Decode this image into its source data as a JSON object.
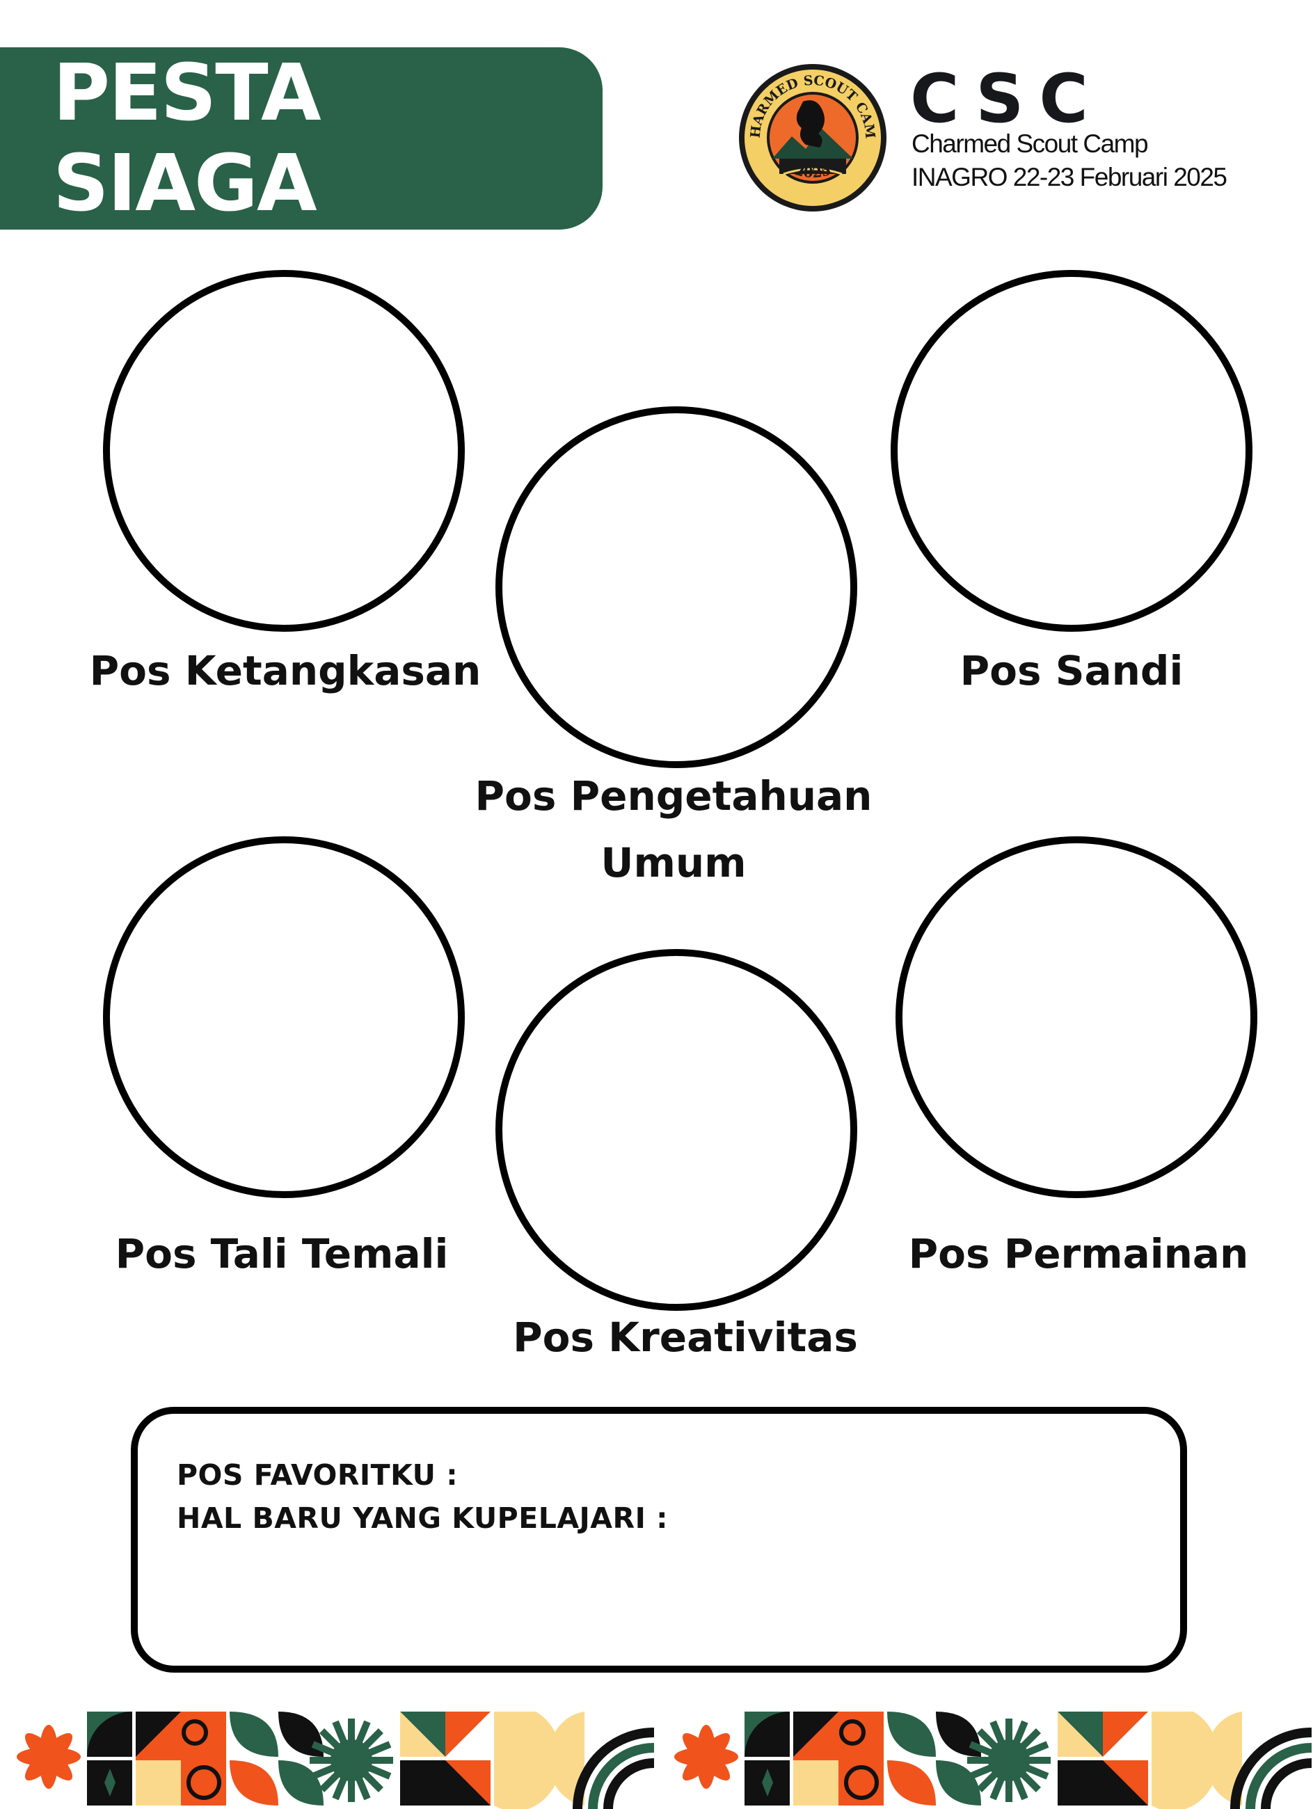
{
  "header": {
    "title": "PESTA SIAGA",
    "logo_text_top": "CHARMED SCOUT CAMP",
    "logo_text_year": "2025",
    "brand_name": "CSC",
    "brand_subtitle": "Charmed Scout Camp",
    "brand_event": "INAGRO 22-23 Februari 2025"
  },
  "stations": {
    "ketangkasan": "Pos Ketangkasan",
    "pengetahuan_line1": "Pos Pengetahuan",
    "pengetahuan_line2": "Umum",
    "sandi": "Pos Sandi",
    "tali_temali": "Pos Tali Temali",
    "kreativitas": "Pos Kreativitas",
    "permainan": "Pos Permainan"
  },
  "notes": {
    "favorite_label": "POS FAVORITKU :",
    "learned_label": "HAL BARU YANG KUPELAJARI :"
  },
  "colors": {
    "green": "#2a6149",
    "orange": "#f0531c",
    "cream": "#fbd98c",
    "black": "#111111"
  }
}
